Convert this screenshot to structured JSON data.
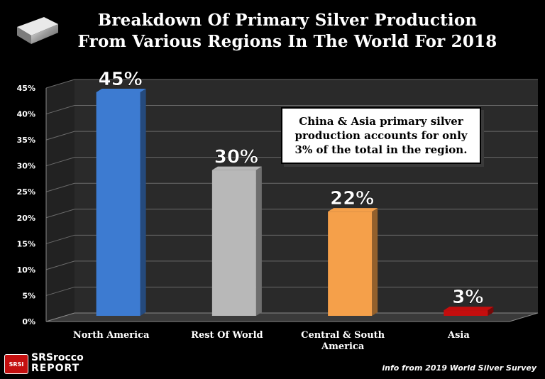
{
  "chart_data": {
    "type": "bar",
    "title": "Breakdown Of Primary Silver Production From Various Regions In The World For 2018",
    "categories": [
      "North America",
      "Rest Of World",
      "Central & South America",
      "Asia"
    ],
    "values": [
      45,
      30,
      22,
      3
    ],
    "data_labels": [
      "45%",
      "30%",
      "22%",
      "3%"
    ],
    "bar_colors": [
      "#3d7bd1",
      "#b8b8b8",
      "#f5a04a",
      "#c40d0d"
    ],
    "ylim": [
      0,
      45
    ],
    "yticks": [
      "0%",
      "5%",
      "10%",
      "15%",
      "20%",
      "25%",
      "30%",
      "35%",
      "40%",
      "45%"
    ],
    "grid": true,
    "legend": false
  },
  "title_lines": [
    "Breakdown Of Primary Silver Production",
    "From Various Regions In The World For 2018"
  ],
  "callout": {
    "lines": [
      "China & Asia primary silver",
      "production accounts for only",
      "3% of the total in the region."
    ]
  },
  "logo": {
    "badge": "SRSI",
    "name": "SRSrocco",
    "report": "REPORT"
  },
  "source": "info from 2019 World Silver Survey",
  "colors": {
    "background": "#000000",
    "plot_floor": "#3a3a3a",
    "plot_wall": "#2a2a2a"
  }
}
